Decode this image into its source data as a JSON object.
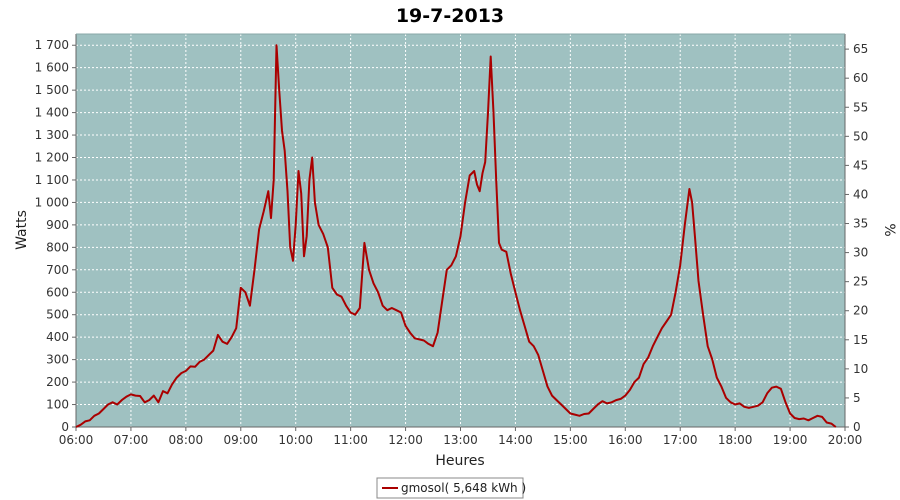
{
  "chart_data": {
    "type": "line",
    "title": "19-7-2013",
    "xlabel": "Heures",
    "ylabel": "Watts",
    "y2label": "%",
    "xlim": [
      "06:00",
      "20:00"
    ],
    "ylim": [
      0,
      1750
    ],
    "y2lim": [
      0,
      67.6
    ],
    "x_tick_labels": [
      "06:00",
      "07:00",
      "08:00",
      "09:00",
      "10:00",
      "11:00",
      "12:00",
      "13:00",
      "14:00",
      "15:00",
      "16:00",
      "17:00",
      "18:00",
      "19:00",
      "20:00"
    ],
    "y_tick_labels": [
      "0",
      "100",
      "200",
      "300",
      "400",
      "500",
      "600",
      "700",
      "800",
      "900",
      "1 000",
      "1 100",
      "1 200",
      "1 300",
      "1 400",
      "1 500",
      "1 600",
      "1 700"
    ],
    "y2_tick_labels": [
      "0",
      "5",
      "10",
      "15",
      "20",
      "25",
      "30",
      "35",
      "40",
      "45",
      "50",
      "55",
      "60",
      "65"
    ],
    "grid": true,
    "legend_position": "bottom-center",
    "colors": {
      "plot_background": "#9fc1c1",
      "line": "#aa0000",
      "grid": "#ffffff"
    },
    "series": [
      {
        "name": "gmosol( 5,648 kWh )",
        "points": [
          [
            "06:00",
            0
          ],
          [
            "06:05",
            10
          ],
          [
            "06:10",
            25
          ],
          [
            "06:15",
            30
          ],
          [
            "06:20",
            50
          ],
          [
            "06:25",
            60
          ],
          [
            "06:30",
            80
          ],
          [
            "06:35",
            100
          ],
          [
            "06:40",
            110
          ],
          [
            "06:45",
            100
          ],
          [
            "06:50",
            120
          ],
          [
            "06:55",
            135
          ],
          [
            "07:00",
            145
          ],
          [
            "07:05",
            140
          ],
          [
            "07:10",
            138
          ],
          [
            "07:15",
            110
          ],
          [
            "07:20",
            120
          ],
          [
            "07:25",
            140
          ],
          [
            "07:30",
            110
          ],
          [
            "07:35",
            160
          ],
          [
            "07:40",
            150
          ],
          [
            "07:45",
            190
          ],
          [
            "07:50",
            220
          ],
          [
            "07:55",
            240
          ],
          [
            "08:00",
            250
          ],
          [
            "08:05",
            270
          ],
          [
            "08:10",
            268
          ],
          [
            "08:15",
            290
          ],
          [
            "08:20",
            300
          ],
          [
            "08:25",
            320
          ],
          [
            "08:30",
            340
          ],
          [
            "08:35",
            410
          ],
          [
            "08:40",
            380
          ],
          [
            "08:45",
            370
          ],
          [
            "08:50",
            400
          ],
          [
            "08:55",
            440
          ],
          [
            "09:00",
            620
          ],
          [
            "09:05",
            600
          ],
          [
            "09:10",
            540
          ],
          [
            "09:15",
            700
          ],
          [
            "09:20",
            880
          ],
          [
            "09:25",
            960
          ],
          [
            "09:30",
            1050
          ],
          [
            "09:33",
            930
          ],
          [
            "09:36",
            1100
          ],
          [
            "09:39",
            1700
          ],
          [
            "09:42",
            1500
          ],
          [
            "09:45",
            1320
          ],
          [
            "09:48",
            1230
          ],
          [
            "09:51",
            1050
          ],
          [
            "09:54",
            800
          ],
          [
            "09:57",
            740
          ],
          [
            "10:00",
            900
          ],
          [
            "10:03",
            1140
          ],
          [
            "10:06",
            1040
          ],
          [
            "10:09",
            760
          ],
          [
            "10:12",
            850
          ],
          [
            "10:15",
            1100
          ],
          [
            "10:18",
            1200
          ],
          [
            "10:21",
            1000
          ],
          [
            "10:25",
            900
          ],
          [
            "10:30",
            860
          ],
          [
            "10:35",
            800
          ],
          [
            "10:40",
            620
          ],
          [
            "10:45",
            590
          ],
          [
            "10:50",
            580
          ],
          [
            "10:55",
            540
          ],
          [
            "11:00",
            510
          ],
          [
            "11:05",
            500
          ],
          [
            "11:10",
            530
          ],
          [
            "11:15",
            820
          ],
          [
            "11:20",
            700
          ],
          [
            "11:25",
            640
          ],
          [
            "11:30",
            600
          ],
          [
            "11:35",
            540
          ],
          [
            "11:40",
            520
          ],
          [
            "11:45",
            530
          ],
          [
            "11:50",
            520
          ],
          [
            "11:55",
            510
          ],
          [
            "12:00",
            450
          ],
          [
            "12:05",
            420
          ],
          [
            "12:10",
            395
          ],
          [
            "12:15",
            390
          ],
          [
            "12:20",
            385
          ],
          [
            "12:25",
            370
          ],
          [
            "12:30",
            360
          ],
          [
            "12:35",
            420
          ],
          [
            "12:40",
            560
          ],
          [
            "12:45",
            700
          ],
          [
            "12:50",
            720
          ],
          [
            "12:55",
            760
          ],
          [
            "13:00",
            850
          ],
          [
            "13:05",
            1000
          ],
          [
            "13:10",
            1120
          ],
          [
            "13:15",
            1140
          ],
          [
            "13:18",
            1080
          ],
          [
            "13:21",
            1050
          ],
          [
            "13:24",
            1130
          ],
          [
            "13:27",
            1180
          ],
          [
            "13:30",
            1400
          ],
          [
            "13:33",
            1650
          ],
          [
            "13:36",
            1400
          ],
          [
            "13:39",
            1100
          ],
          [
            "13:42",
            820
          ],
          [
            "13:45",
            790
          ],
          [
            "13:50",
            780
          ],
          [
            "13:55",
            680
          ],
          [
            "14:00",
            600
          ],
          [
            "14:05",
            520
          ],
          [
            "14:10",
            450
          ],
          [
            "14:15",
            380
          ],
          [
            "14:20",
            360
          ],
          [
            "14:25",
            320
          ],
          [
            "14:30",
            250
          ],
          [
            "14:35",
            180
          ],
          [
            "14:40",
            140
          ],
          [
            "14:45",
            120
          ],
          [
            "14:50",
            100
          ],
          [
            "14:55",
            80
          ],
          [
            "15:00",
            60
          ],
          [
            "15:05",
            55
          ],
          [
            "15:10",
            50
          ],
          [
            "15:15",
            58
          ],
          [
            "15:20",
            60
          ],
          [
            "15:25",
            80
          ],
          [
            "15:30",
            100
          ],
          [
            "15:35",
            115
          ],
          [
            "15:40",
            105
          ],
          [
            "15:45",
            110
          ],
          [
            "15:50",
            120
          ],
          [
            "15:55",
            125
          ],
          [
            "16:00",
            140
          ],
          [
            "16:05",
            165
          ],
          [
            "16:10",
            200
          ],
          [
            "16:15",
            220
          ],
          [
            "16:20",
            280
          ],
          [
            "16:25",
            310
          ],
          [
            "16:30",
            360
          ],
          [
            "16:35",
            400
          ],
          [
            "16:40",
            440
          ],
          [
            "16:45",
            470
          ],
          [
            "16:50",
            500
          ],
          [
            "16:55",
            600
          ],
          [
            "17:00",
            720
          ],
          [
            "17:05",
            900
          ],
          [
            "17:10",
            1060
          ],
          [
            "17:13",
            1000
          ],
          [
            "17:16",
            850
          ],
          [
            "17:20",
            650
          ],
          [
            "17:25",
            500
          ],
          [
            "17:30",
            360
          ],
          [
            "17:35",
            300
          ],
          [
            "17:40",
            220
          ],
          [
            "17:45",
            180
          ],
          [
            "17:50",
            130
          ],
          [
            "17:55",
            110
          ],
          [
            "18:00",
            100
          ],
          [
            "18:05",
            105
          ],
          [
            "18:10",
            90
          ],
          [
            "18:15",
            85
          ],
          [
            "18:20",
            90
          ],
          [
            "18:25",
            95
          ],
          [
            "18:30",
            110
          ],
          [
            "18:35",
            150
          ],
          [
            "18:40",
            175
          ],
          [
            "18:45",
            180
          ],
          [
            "18:50",
            170
          ],
          [
            "18:55",
            110
          ],
          [
            "19:00",
            60
          ],
          [
            "19:05",
            40
          ],
          [
            "19:10",
            35
          ],
          [
            "19:15",
            38
          ],
          [
            "19:20",
            30
          ],
          [
            "19:25",
            40
          ],
          [
            "19:30",
            50
          ],
          [
            "19:35",
            45
          ],
          [
            "19:40",
            20
          ],
          [
            "19:45",
            15
          ],
          [
            "19:50",
            0
          ]
        ]
      }
    ]
  }
}
